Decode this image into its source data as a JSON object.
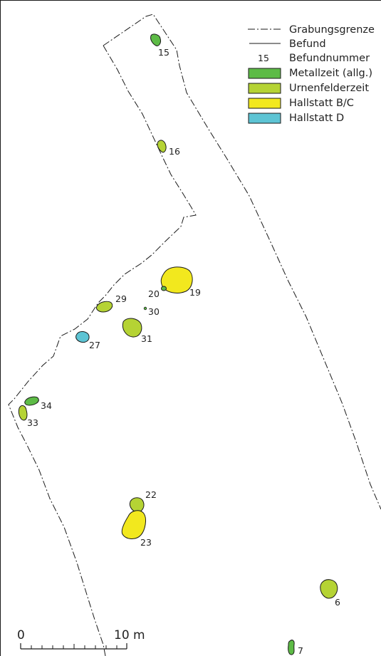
{
  "legend": {
    "boundary_label": "Grabungsgrenze",
    "feature_label": "Befund",
    "number_sample": "15",
    "number_label": "Befundnummer",
    "periods": [
      {
        "label": "Metallzeit (allg.)",
        "color": "#5dbb46"
      },
      {
        "label": "Urnenfelderzeit",
        "color": "#b5d334"
      },
      {
        "label": "Hallstatt B/C",
        "color": "#f2e81e"
      },
      {
        "label": "Hallstatt D",
        "color": "#5dc4d4"
      }
    ]
  },
  "features": [
    {
      "number": "15",
      "period": "Metallzeit (allg.)"
    },
    {
      "number": "16",
      "period": "Urnenfelderzeit"
    },
    {
      "number": "19",
      "period": "Hallstatt B/C"
    },
    {
      "number": "20",
      "period": "Metallzeit (allg.)"
    },
    {
      "number": "30",
      "period": "Metallzeit (allg.)"
    },
    {
      "number": "29",
      "period": "Urnenfelderzeit"
    },
    {
      "number": "31",
      "period": "Urnenfelderzeit"
    },
    {
      "number": "27",
      "period": "Hallstatt D"
    },
    {
      "number": "34",
      "period": "Metallzeit (allg.)"
    },
    {
      "number": "33",
      "period": "Urnenfelderzeit"
    },
    {
      "number": "22",
      "period": "Urnenfelderzeit"
    },
    {
      "number": "23",
      "period": "Hallstatt B/C"
    },
    {
      "number": "6",
      "period": "Urnenfelderzeit"
    },
    {
      "number": "7",
      "period": "Metallzeit (allg.)"
    }
  ],
  "scale_bar": {
    "start_label": "0",
    "end_label": "10 m"
  }
}
